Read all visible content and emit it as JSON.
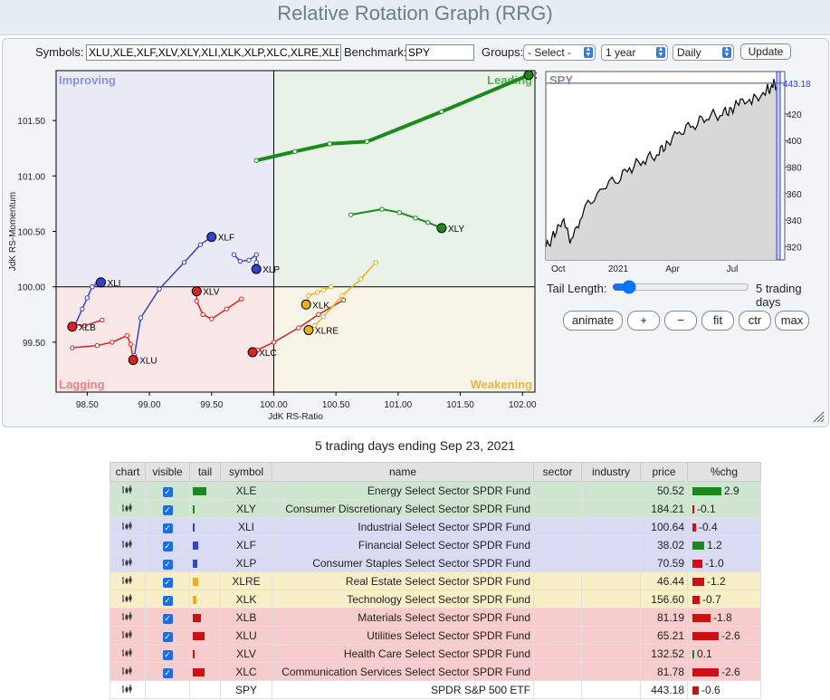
{
  "page": {
    "title": "Relative Rotation Graph (RRG)"
  },
  "controls": {
    "symbols_label": "Symbols:",
    "symbols_value": "XLU,XLE,XLF,XLV,XLY,XLI,XLK,XLP,XLC,XLRE,XLB",
    "benchmark_label": "Benchmark:",
    "benchmark_value": "SPY",
    "groups_label": "Groups:",
    "groups_value": "- Select -",
    "period_value": "1 year",
    "frequency_value": "Daily",
    "update_label": "Update"
  },
  "rrg": {
    "xlabel": "JdK RS-Ratio",
    "ylabel": "JdK RS-Momentum",
    "x_ticks": [
      "98.50",
      "99.00",
      "99.50",
      "100.00",
      "100.50",
      "101.00",
      "101.50",
      "102.00"
    ],
    "y_ticks": [
      "101.50",
      "101.00",
      "100.50",
      "100.00",
      "99.50"
    ],
    "quadrants": {
      "improving": "Improving",
      "leading": "Leading",
      "lagging": "Lagging",
      "weakening": "Weakening"
    }
  },
  "chart_data": {
    "type": "scatter",
    "xlabel": "JdK RS-Ratio",
    "ylabel": "JdK RS-Momentum",
    "xlim": [
      98.25,
      102.1
    ],
    "ylim": [
      99.05,
      101.95
    ],
    "series": [
      {
        "name": "XLE",
        "color": "#1a8a1a",
        "points": [
          [
            99.86,
            101.14
          ],
          [
            100.17,
            101.22
          ],
          [
            100.45,
            101.29
          ],
          [
            100.75,
            101.31
          ],
          [
            101.35,
            101.58
          ],
          [
            102.05,
            101.91
          ]
        ]
      },
      {
        "name": "XLY",
        "color": "#1a8a1a",
        "points": [
          [
            100.62,
            100.65
          ],
          [
            100.87,
            100.7
          ],
          [
            101.01,
            100.67
          ],
          [
            101.14,
            100.62
          ],
          [
            101.24,
            100.58
          ],
          [
            101.35,
            100.53
          ]
        ]
      },
      {
        "name": "XLF",
        "color": "#3344cc",
        "points": [
          [
            98.88,
            99.38
          ],
          [
            98.93,
            99.72
          ],
          [
            99.08,
            99.98
          ],
          [
            99.28,
            100.22
          ],
          [
            99.41,
            100.38
          ],
          [
            99.5,
            100.45
          ]
        ]
      },
      {
        "name": "XLP",
        "color": "#3344cc",
        "points": [
          [
            99.68,
            100.29
          ],
          [
            99.73,
            100.23
          ],
          [
            99.8,
            100.24
          ],
          [
            99.86,
            100.29
          ],
          [
            99.86,
            100.22
          ],
          [
            99.86,
            100.16
          ]
        ]
      },
      {
        "name": "XLI",
        "color": "#3344cc",
        "points": [
          [
            98.4,
            99.65
          ],
          [
            98.46,
            99.8
          ],
          [
            98.5,
            99.9
          ],
          [
            98.54,
            100.0
          ],
          [
            98.58,
            100.03
          ],
          [
            98.61,
            100.04
          ]
        ]
      },
      {
        "name": "XLB",
        "color": "#dd2222",
        "points": [
          [
            98.62,
            99.7
          ],
          [
            98.48,
            99.65
          ],
          [
            98.4,
            99.66
          ],
          [
            98.38,
            99.62
          ],
          [
            98.37,
            99.63
          ],
          [
            98.38,
            99.64
          ]
        ]
      },
      {
        "name": "XLU",
        "color": "#dd2222",
        "points": [
          [
            98.38,
            99.45
          ],
          [
            98.58,
            99.47
          ],
          [
            98.7,
            99.5
          ],
          [
            98.82,
            99.56
          ],
          [
            98.85,
            99.48
          ],
          [
            98.87,
            99.34
          ]
        ]
      },
      {
        "name": "XLV",
        "color": "#dd2222",
        "points": [
          [
            99.74,
            99.89
          ],
          [
            99.62,
            99.8
          ],
          [
            99.5,
            99.71
          ],
          [
            99.43,
            99.75
          ],
          [
            99.38,
            99.87
          ],
          [
            99.38,
            99.96
          ]
        ]
      },
      {
        "name": "XLC",
        "color": "#dd2222",
        "points": [
          [
            100.56,
            99.88
          ],
          [
            100.36,
            99.75
          ],
          [
            100.2,
            99.63
          ],
          [
            100.0,
            99.5
          ],
          [
            99.87,
            99.43
          ],
          [
            99.83,
            99.41
          ]
        ]
      },
      {
        "name": "XLK",
        "color": "#e8b020",
        "points": [
          [
            100.46,
            100.0
          ],
          [
            100.4,
            99.97
          ],
          [
            100.35,
            99.95
          ],
          [
            100.28,
            99.92
          ],
          [
            100.27,
            99.86
          ],
          [
            100.26,
            99.84
          ]
        ]
      },
      {
        "name": "XLRE",
        "color": "#e8b020",
        "points": [
          [
            100.82,
            100.22
          ],
          [
            100.7,
            100.07
          ],
          [
            100.55,
            99.92
          ],
          [
            100.4,
            99.73
          ],
          [
            100.33,
            99.65
          ],
          [
            100.28,
            99.61
          ]
        ]
      }
    ]
  },
  "spy_chart": {
    "label": "SPY",
    "last_value": "443.18",
    "y_ticks": [
      "420",
      "400",
      "380",
      "360",
      "340",
      "320"
    ],
    "x_ticks": [
      "Oct",
      "2021",
      "Apr",
      "Jul"
    ]
  },
  "tail": {
    "label": "Tail Length:",
    "value": 5,
    "max": 50,
    "value_label": "5 trading days"
  },
  "buttons": {
    "animate": "animate",
    "zoom_in": "+",
    "zoom_out": "−",
    "fit": "fit",
    "center": "ctr",
    "max": "max"
  },
  "caption": "5 trading days ending Sep 23, 2021",
  "table": {
    "headers": [
      "chart",
      "visible",
      "tail",
      "symbol",
      "name",
      "sector",
      "industry",
      "price",
      "%chg"
    ],
    "rows": [
      {
        "symbol": "XLE",
        "name": "Energy Select Sector SPDR Fund",
        "price": "50.52",
        "chg": "2.9",
        "chg_value": 2.9,
        "tail_color": "#1a8a1a",
        "bg": "#cfe5cf",
        "visible": true
      },
      {
        "symbol": "XLY",
        "name": "Consumer Discretionary Select Sector SPDR Fund",
        "price": "184.21",
        "chg": "-0.1",
        "chg_value": -0.1,
        "tail_color": "#1a8a1a",
        "bg": "#cfe5cf",
        "visible": true
      },
      {
        "symbol": "XLI",
        "name": "Industrial Select Sector SPDR Fund",
        "price": "100.64",
        "chg": "-0.4",
        "chg_value": -0.4,
        "tail_color": "#3344cc",
        "bg": "#d8dbf3",
        "visible": true
      },
      {
        "symbol": "XLF",
        "name": "Financial Select Sector SPDR Fund",
        "price": "38.02",
        "chg": "1.2",
        "chg_value": 1.2,
        "tail_color": "#3344cc",
        "bg": "#d8dbf3",
        "visible": true
      },
      {
        "symbol": "XLP",
        "name": "Consumer Staples Select Sector SPDR Fund",
        "price": "70.59",
        "chg": "-1.0",
        "chg_value": -1.0,
        "tail_color": "#3344cc",
        "bg": "#d8dbf3",
        "visible": true
      },
      {
        "symbol": "XLRE",
        "name": "Real Estate Select Sector SPDR Fund",
        "price": "46.44",
        "chg": "-1.2",
        "chg_value": -1.2,
        "tail_color": "#e8b020",
        "bg": "#f8efc9",
        "visible": true
      },
      {
        "symbol": "XLK",
        "name": "Technology Select Sector SPDR Fund",
        "price": "156.60",
        "chg": "-0.7",
        "chg_value": -0.7,
        "tail_color": "#e8b020",
        "bg": "#f8efc9",
        "visible": true
      },
      {
        "symbol": "XLB",
        "name": "Materials Select Sector SPDR Fund",
        "price": "81.19",
        "chg": "-1.8",
        "chg_value": -1.8,
        "tail_color": "#cc1111",
        "bg": "#f6cccc",
        "visible": true
      },
      {
        "symbol": "XLU",
        "name": "Utilities Select Sector SPDR Fund",
        "price": "65.21",
        "chg": "-2.6",
        "chg_value": -2.6,
        "tail_color": "#cc1111",
        "bg": "#f6cccc",
        "visible": true
      },
      {
        "symbol": "XLV",
        "name": "Health Care Select Sector SPDR Fund",
        "price": "132.52",
        "chg": "0.1",
        "chg_value": 0.1,
        "tail_color": "#cc1111",
        "bg": "#f6cccc",
        "visible": true
      },
      {
        "symbol": "XLC",
        "name": "Communication Services Select Sector SPDR Fund",
        "price": "81.78",
        "chg": "-2.6",
        "chg_value": -2.6,
        "tail_color": "#cc1111",
        "bg": "#f6cccc",
        "visible": true
      },
      {
        "symbol": "SPY",
        "name": "SPDR S&P 500 ETF",
        "price": "443.18",
        "chg": "-0.6",
        "chg_value": -0.6,
        "tail_color": "",
        "bg": "#ffffff",
        "visible": false
      }
    ]
  }
}
